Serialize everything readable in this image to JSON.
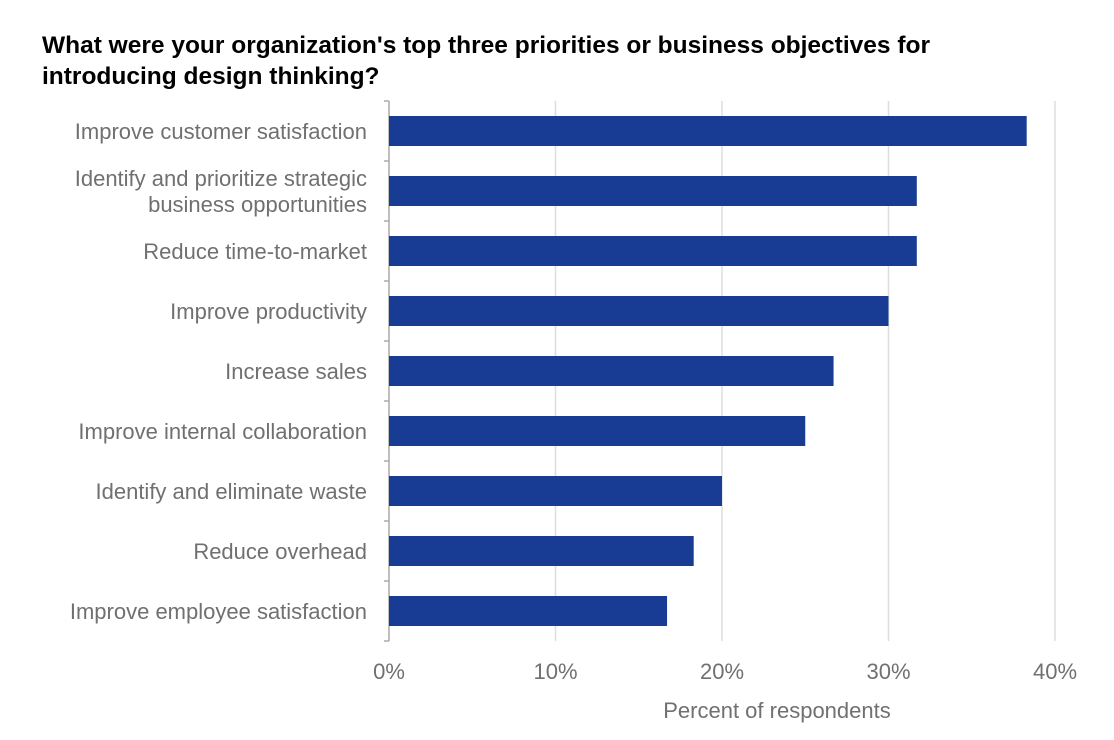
{
  "chart_data": {
    "type": "bar",
    "orientation": "horizontal",
    "title": "What were your organization's top three priorities or business objectives for introducing design thinking?",
    "xlabel": "Percent of respondents",
    "ylabel": "",
    "categories": [
      "Improve customer satisfaction",
      "Identify and prioritize strategic business opportunities",
      "Reduce time-to-market",
      "Improve productivity",
      "Increase sales",
      "Improve internal collaboration",
      "Identify and eliminate waste",
      "Reduce overhead",
      "Improve employee satisfaction"
    ],
    "category_lines": [
      [
        "Improve customer satisfaction"
      ],
      [
        "Identify and prioritize strategic",
        "business opportunities"
      ],
      [
        "Reduce time-to-market"
      ],
      [
        "Improve productivity"
      ],
      [
        "Increase sales"
      ],
      [
        "Improve internal collaboration"
      ],
      [
        "Identify and eliminate waste"
      ],
      [
        "Reduce overhead"
      ],
      [
        "Improve employee satisfaction"
      ]
    ],
    "values": [
      38.3,
      31.7,
      31.7,
      30.0,
      26.7,
      25.0,
      20.0,
      18.3,
      16.7
    ],
    "unit": "%",
    "xlim": [
      0,
      40
    ],
    "xticks": [
      0,
      10,
      20,
      30,
      40
    ],
    "xtick_labels": [
      "0%",
      "10%",
      "20%",
      "30%",
      "40%"
    ],
    "grid": "vertical",
    "legend": "none",
    "colors": {
      "bar": "#183c94",
      "grid": "#dddddd",
      "axis": "#aaaaaa",
      "label": "#707070",
      "title": "#000000"
    }
  }
}
